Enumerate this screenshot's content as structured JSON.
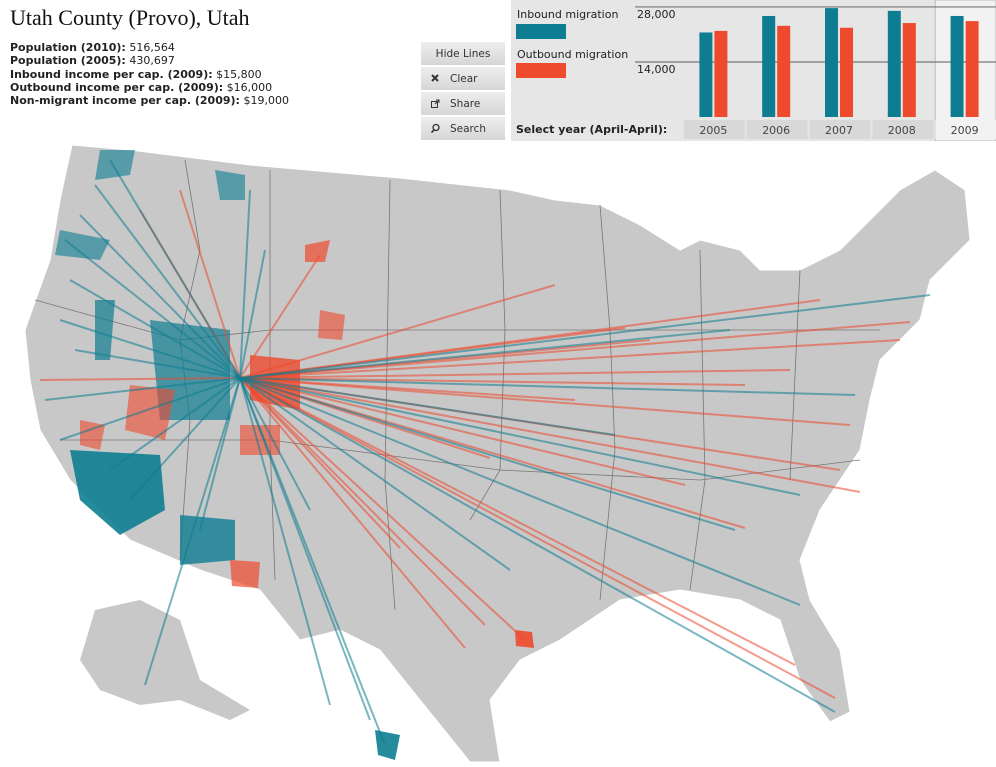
{
  "header": {
    "title": "Utah County (Provo), Utah",
    "stats": [
      {
        "label": "Population (2010):",
        "value": "516,564"
      },
      {
        "label": "Population (2005):",
        "value": "430,697"
      },
      {
        "label": "Inbound income per cap. (2009):",
        "value": "$15,800"
      },
      {
        "label": "Outbound income per cap. (2009):",
        "value": "$16,000"
      },
      {
        "label": "Non-migrant income per cap. (2009):",
        "value": "$19,000"
      }
    ]
  },
  "buttons": [
    "Hide Lines",
    "Clear",
    "Share",
    "Search"
  ],
  "chart_data": {
    "type": "bar",
    "categories": [
      "2005",
      "2006",
      "2007",
      "2008",
      "2009"
    ],
    "x_label": "Select year (April-April):",
    "selected": "2009",
    "series": [
      {
        "name": "Inbound migration",
        "color": "#0e7d92",
        "values": [
          21500,
          25700,
          27700,
          27000,
          25700
        ]
      },
      {
        "name": "Outbound migration",
        "color": "#ee4a2e",
        "values": [
          21900,
          23200,
          22700,
          23900,
          24400
        ]
      }
    ],
    "ylim": [
      0,
      29000
    ],
    "yticks": [
      {
        "value": 14000,
        "label": "14,000"
      },
      {
        "value": 28000,
        "label": "28,000"
      }
    ],
    "grid": true
  }
}
